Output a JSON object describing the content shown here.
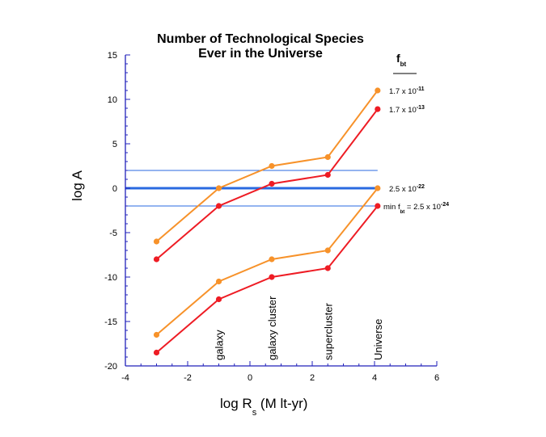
{
  "chart_data": {
    "type": "line",
    "title_lines": [
      "Number of Technological Species",
      "Ever in the Universe"
    ],
    "xlabel": {
      "main": "log R",
      "sub": "s",
      "rest": " (M lt-yr)"
    },
    "ylabel": "log A",
    "xlim": [
      -4,
      6
    ],
    "ylim": [
      -20,
      15
    ],
    "xticks": [
      -4,
      -2,
      0,
      2,
      4,
      6
    ],
    "yticks": [
      15,
      10,
      5,
      0,
      -5,
      -10,
      -15,
      -20
    ],
    "x": [
      -3,
      -1,
      0.7,
      2.5,
      4.1
    ],
    "category_markers": [
      {
        "x": -1,
        "label": "galaxy"
      },
      {
        "x": 0.7,
        "label": "galaxy cluster"
      },
      {
        "x": 2.5,
        "label": "supercluster"
      },
      {
        "x": 4.1,
        "label": "Universe"
      }
    ],
    "series": [
      {
        "values": [
          -6,
          0,
          2.5,
          3.5,
          11
        ],
        "color": "#f7922a"
      },
      {
        "values": [
          -8,
          -2,
          0.5,
          1.5,
          8.9
        ],
        "color": "#ee1c24"
      },
      {
        "values": [
          -16.5,
          -10.5,
          -8,
          -7,
          0
        ],
        "color": "#f7922a"
      },
      {
        "values": [
          -18.5,
          -12.5,
          -10,
          -9,
          -2
        ],
        "color": "#ee1c24"
      }
    ],
    "reference_lines": [
      {
        "y": 2,
        "weight": "thin"
      },
      {
        "y": 0,
        "weight": "thick"
      },
      {
        "y": -2,
        "weight": "thin"
      }
    ],
    "reference_color": "#2a6ae0",
    "axis_color": "#2222bb",
    "legend_header": {
      "main": "f",
      "sub": "bt"
    },
    "series_labels": [
      {
        "prefix": "",
        "sub": "",
        "text": "1.7 x 10",
        "exp": "-11"
      },
      {
        "prefix": "",
        "sub": "",
        "text": "1.7 x 10",
        "exp": "-13"
      },
      {
        "prefix": "",
        "sub": "",
        "text": "2.5 x 10",
        "exp": "-22"
      },
      {
        "prefix": "min f",
        "sub": "bt",
        "text": " = 2.5 x 10",
        "exp": "-24"
      }
    ],
    "grid": false,
    "legend_placement": "right"
  }
}
